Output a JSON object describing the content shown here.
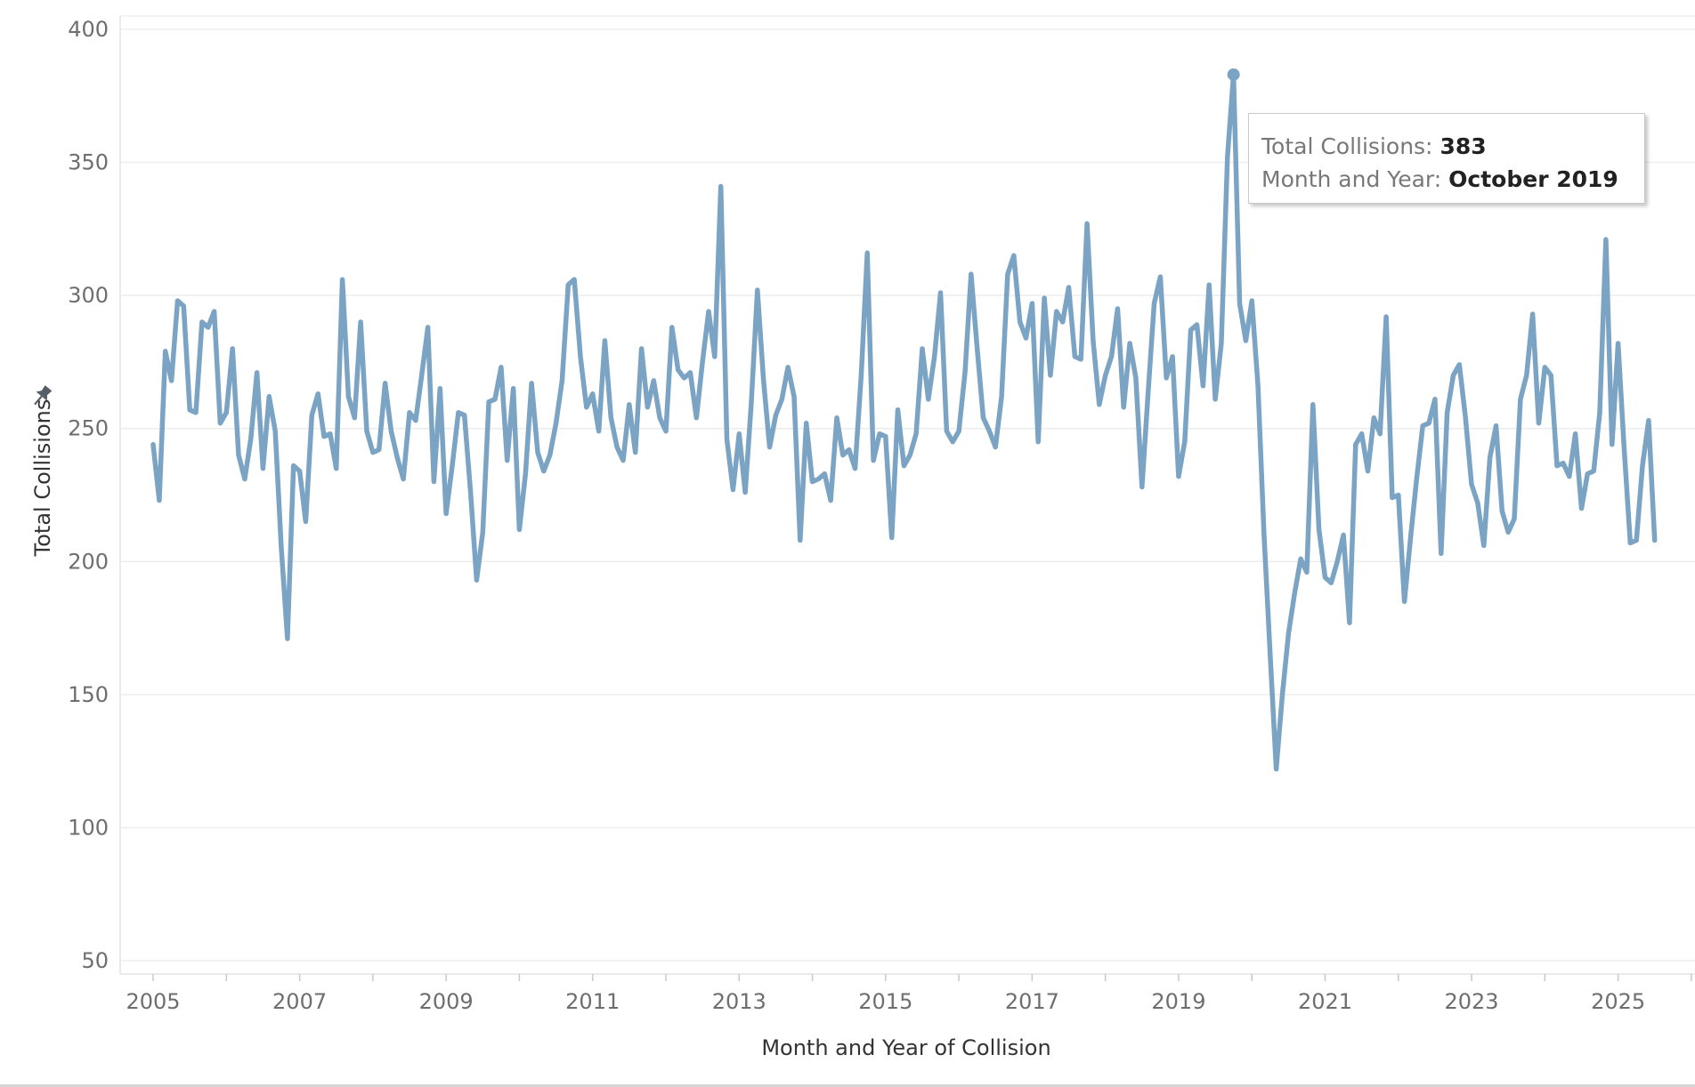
{
  "chart_data": {
    "type": "line",
    "title": "",
    "xlabel": "Month and Year of Collision",
    "ylabel": "Total Collisions",
    "xlim": [
      2004.55,
      2026.05
    ],
    "ylim": [
      45,
      405
    ],
    "x_ticks": [
      "2005",
      "2007",
      "2009",
      "2011",
      "2013",
      "2015",
      "2017",
      "2019",
      "2021",
      "2023",
      "2025"
    ],
    "y_ticks": [
      "400",
      "350",
      "300",
      "250",
      "200",
      "150",
      "100",
      "50"
    ],
    "grid": true,
    "line_color": "#7ba3c4",
    "pin_icon": "pin-icon",
    "series": [
      {
        "start": "2005-01",
        "frequency": "monthly",
        "values": [
          244,
          223,
          279,
          268,
          298,
          296,
          257,
          256,
          290,
          288,
          294,
          252,
          256,
          280,
          240,
          231,
          246,
          271,
          235,
          262,
          249,
          205,
          171,
          236,
          234,
          215,
          255,
          263,
          247,
          248,
          235,
          306,
          262,
          254,
          290,
          249,
          241,
          242,
          267,
          249,
          239,
          231,
          256,
          253,
          270,
          288,
          230,
          265,
          218,
          236,
          256,
          255,
          226,
          193,
          211,
          260,
          261,
          273,
          238,
          265,
          212,
          233,
          267,
          241,
          234,
          240,
          252,
          268,
          304,
          306,
          277,
          258,
          263,
          249,
          283,
          254,
          243,
          238,
          259,
          241,
          280,
          258,
          268,
          254,
          249,
          288,
          272,
          269,
          271,
          254,
          275,
          294,
          277,
          341,
          246,
          227,
          248,
          226,
          260,
          302,
          268,
          243,
          255,
          261,
          273,
          262,
          208,
          252,
          230,
          231,
          233,
          223,
          254,
          240,
          242,
          235,
          270,
          316,
          238,
          248,
          247,
          209,
          257,
          236,
          240,
          248,
          280,
          261,
          277,
          301,
          249,
          245,
          249,
          271,
          308,
          280,
          254,
          249,
          243,
          262,
          308,
          315,
          290,
          284,
          297,
          245,
          299,
          270,
          294,
          290,
          303,
          277,
          276,
          327,
          283,
          259,
          270,
          277,
          295,
          258,
          282,
          269,
          228,
          263,
          297,
          307,
          269,
          277,
          232,
          245,
          287,
          289,
          266,
          304,
          261,
          282,
          352,
          383,
          297,
          283,
          298,
          266,
          210,
          165,
          122,
          150,
          173,
          188,
          201,
          196,
          259,
          212,
          194,
          192,
          200,
          210,
          177,
          244,
          248,
          234,
          254,
          248,
          292,
          224,
          225,
          185,
          209,
          231,
          251,
          252,
          261,
          203,
          256,
          270,
          274,
          254,
          229,
          222,
          206,
          239,
          251,
          219,
          211,
          216,
          261,
          270,
          293,
          252,
          273,
          270,
          236,
          237,
          232,
          248,
          220,
          233,
          234,
          256,
          321,
          244,
          282,
          242,
          207,
          208,
          236,
          253,
          208
        ]
      }
    ],
    "highlight": {
      "x": "2019-10",
      "y": 383
    }
  },
  "tooltip": {
    "label1": "Total Collisions:",
    "value1": "383",
    "label2": "Month and Year:",
    "value2": "October 2019"
  }
}
